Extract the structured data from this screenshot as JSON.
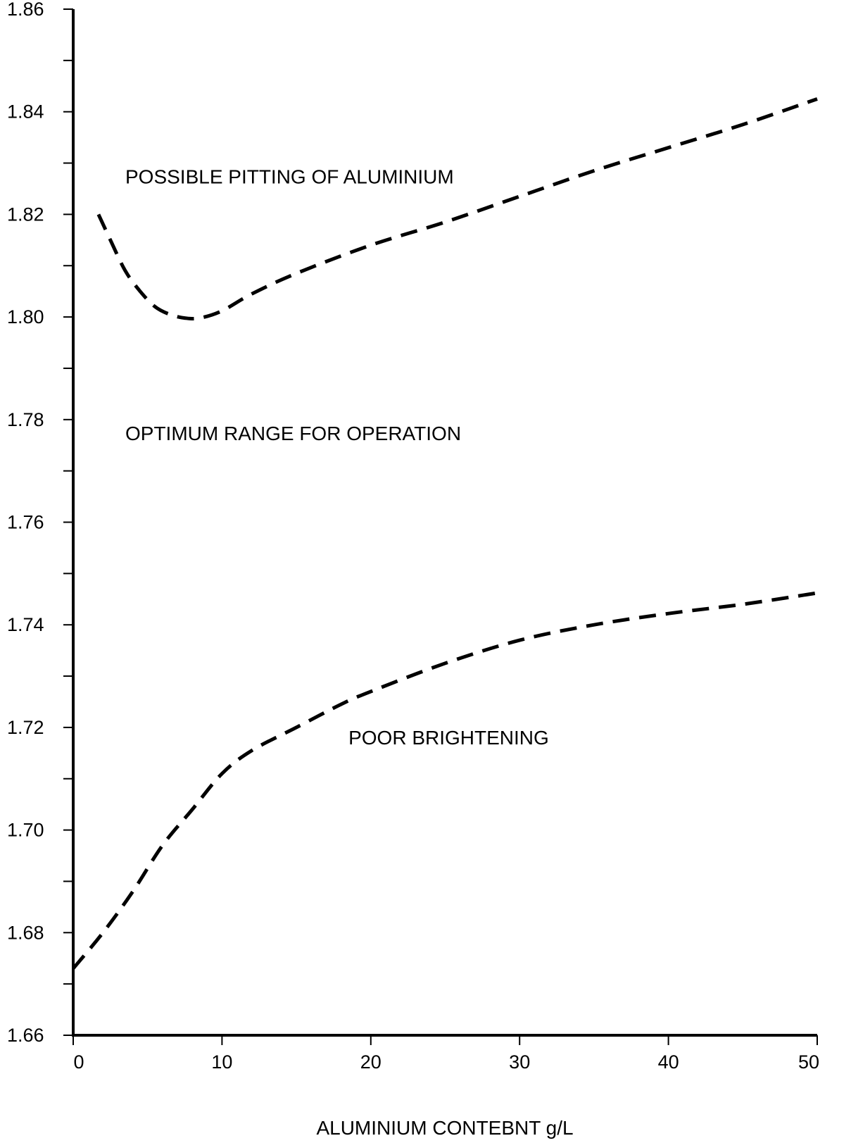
{
  "chart_data": {
    "type": "line",
    "title": "",
    "xlabel": "ALUMINIUM CONTEBNT g/L",
    "ylabel": "",
    "xlim": [
      0,
      50
    ],
    "ylim": [
      1.66,
      1.86
    ],
    "x_ticks": [
      0,
      10,
      20,
      30,
      40,
      50
    ],
    "x_tick_labels": [
      "0",
      "10",
      "20",
      "30",
      "40",
      "50"
    ],
    "y_ticks": [
      1.66,
      1.68,
      1.7,
      1.72,
      1.74,
      1.76,
      1.78,
      1.8,
      1.82,
      1.84,
      1.86
    ],
    "y_tick_labels": [
      "1.66",
      "1.68",
      "1.70",
      "1.72",
      "1.74",
      "1.76",
      "1.78",
      "1.80",
      "1.82",
      "1.84",
      "1.86"
    ],
    "y_minor_step": 0.01,
    "grid": false,
    "series": [
      {
        "style": "dashed",
        "color": "#000000",
        "points": [
          [
            1.7,
            1.82
          ],
          [
            2.5,
            1.815
          ],
          [
            3.5,
            1.809
          ],
          [
            4.5,
            1.805
          ],
          [
            5.5,
            1.802
          ],
          [
            6.5,
            1.8005
          ],
          [
            7.5,
            1.7998
          ],
          [
            8.5,
            1.7998
          ],
          [
            10,
            1.8012
          ],
          [
            12,
            1.8045
          ],
          [
            15,
            1.8085
          ],
          [
            20,
            1.814
          ],
          [
            25,
            1.8185
          ],
          [
            30,
            1.8235
          ],
          [
            35,
            1.8285
          ],
          [
            40,
            1.833
          ],
          [
            45,
            1.8375
          ],
          [
            50,
            1.8425
          ]
        ]
      },
      {
        "style": "dashed",
        "color": "#000000",
        "points": [
          [
            0,
            1.673
          ],
          [
            2,
            1.68
          ],
          [
            4,
            1.688
          ],
          [
            6,
            1.697
          ],
          [
            8,
            1.704
          ],
          [
            10,
            1.711
          ],
          [
            12,
            1.7155
          ],
          [
            15,
            1.72
          ],
          [
            18,
            1.7245
          ],
          [
            20,
            1.727
          ],
          [
            25,
            1.7325
          ],
          [
            30,
            1.737
          ],
          [
            35,
            1.74
          ],
          [
            40,
            1.7422
          ],
          [
            45,
            1.744
          ],
          [
            50,
            1.7462
          ]
        ]
      }
    ],
    "annotations": [
      {
        "text": "POSSIBLE PITTING OF ALUMINIUM",
        "x": 3.5,
        "y": 1.826
      },
      {
        "text": "OPTIMUM RANGE FOR OPERATION",
        "x": 3.5,
        "y": 1.776
      },
      {
        "text": "POOR BRIGHTENING",
        "x": 18.5,
        "y": 1.7167
      }
    ]
  }
}
